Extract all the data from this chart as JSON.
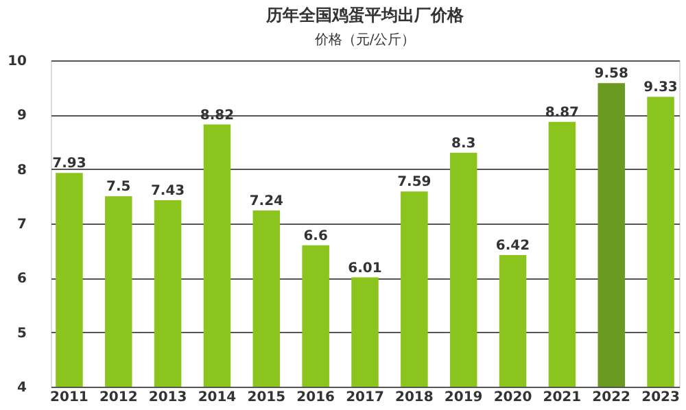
{
  "chart_data": {
    "type": "bar",
    "title": "历年全国鸡蛋平均出厂价格",
    "ylabel": "价格（元/公斤）",
    "categories": [
      "2011",
      "2012",
      "2013",
      "2014",
      "2015",
      "2016",
      "2017",
      "2018",
      "2019",
      "2020",
      "2021",
      "2022",
      "2023"
    ],
    "values": [
      7.93,
      7.5,
      7.43,
      8.82,
      7.24,
      6.6,
      6.01,
      7.59,
      8.3,
      6.42,
      8.87,
      9.58,
      9.33
    ],
    "colors": [
      "#8cc41e",
      "#8cc41e",
      "#8cc41e",
      "#8cc41e",
      "#8cc41e",
      "#8cc41e",
      "#8cc41e",
      "#8cc41e",
      "#8cc41e",
      "#8cc41e",
      "#8cc41e",
      "#6a9a1f",
      "#8cc41e"
    ],
    "ylim": [
      4,
      10
    ],
    "yticks": [
      4,
      5,
      6,
      7,
      8,
      9,
      10
    ],
    "grid": "y",
    "data_labels": true
  }
}
